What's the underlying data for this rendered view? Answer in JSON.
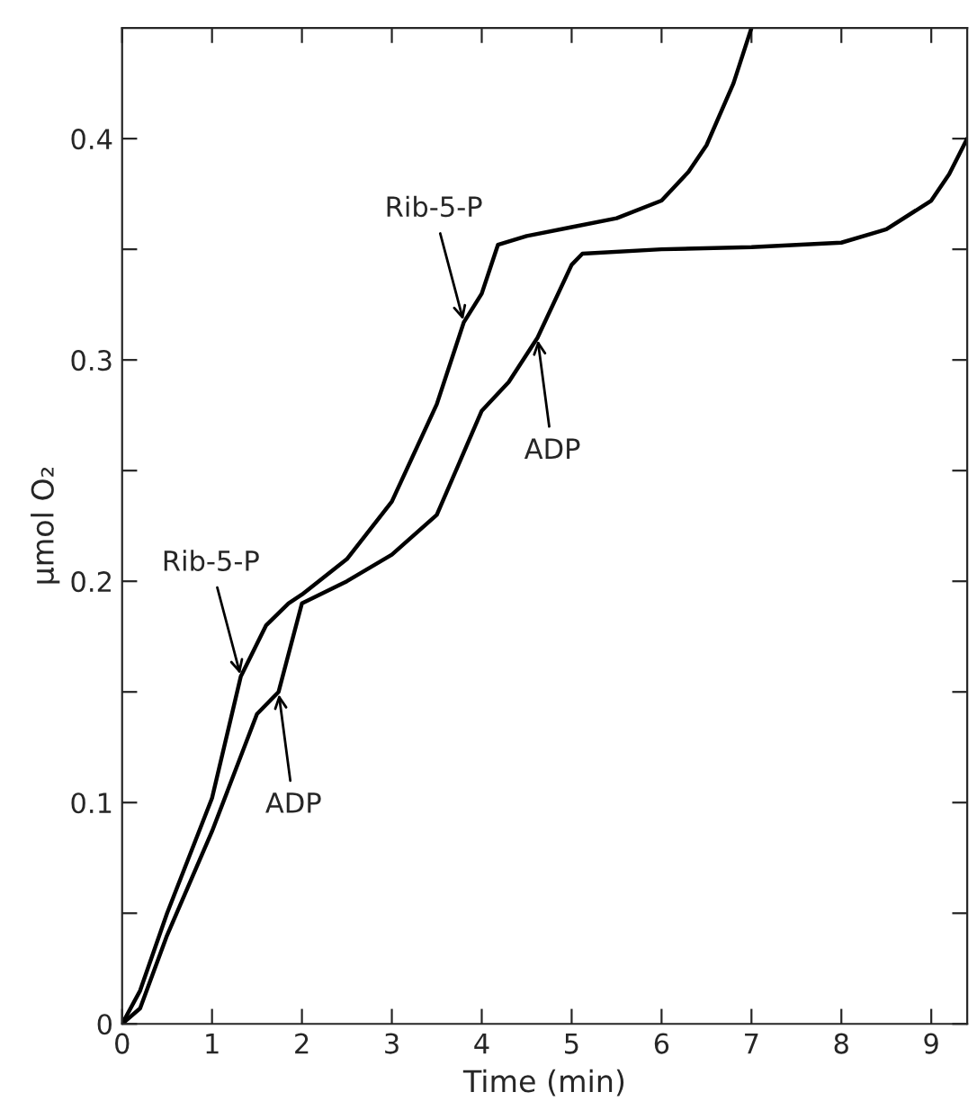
{
  "chart_data": {
    "type": "line",
    "xlabel": "Time (min)",
    "ylabel": "μmol O₂",
    "xlim": [
      0,
      9.4
    ],
    "xticks": [
      0,
      1,
      2,
      3,
      4,
      5,
      6,
      7,
      8,
      9
    ],
    "ylim": [
      0,
      0.45
    ],
    "yticks": [
      0,
      {
        "value": 0.05,
        "label": null
      },
      0.1,
      {
        "value": 0.15,
        "label": null
      },
      0.2,
      {
        "value": 0.25,
        "label": null
      },
      0.3,
      {
        "value": 0.35,
        "label": null
      },
      0.4
    ],
    "grid": false,
    "marker": "none",
    "line_style": "solid",
    "series": [
      {
        "color": "#000000",
        "x": [
          0,
          0.2,
          0.5,
          1,
          1.32,
          1.6,
          1.85,
          2,
          2.5,
          3,
          3.5,
          3.8,
          4,
          4.18,
          4.5,
          5,
          5.5,
          6,
          6.3,
          6.5,
          6.8,
          7.0
        ],
        "values": [
          0,
          0.015,
          0.05,
          0.102,
          0.157,
          0.18,
          0.19,
          0.194,
          0.21,
          0.236,
          0.28,
          0.317,
          0.33,
          0.352,
          0.356,
          0.36,
          0.364,
          0.372,
          0.385,
          0.397,
          0.425,
          0.45
        ]
      },
      {
        "color": "#000000",
        "x": [
          0,
          0.2,
          0.5,
          1,
          1.5,
          1.74,
          2,
          2.5,
          3,
          3.5,
          4,
          4.3,
          4.62,
          5,
          5.12,
          6,
          7,
          8,
          8.5,
          9,
          9.2,
          9.4
        ],
        "values": [
          0,
          0.007,
          0.04,
          0.087,
          0.14,
          0.15,
          0.19,
          0.2,
          0.212,
          0.23,
          0.277,
          0.29,
          0.31,
          0.343,
          0.348,
          0.35,
          0.351,
          0.353,
          0.359,
          0.372,
          0.384,
          0.4
        ]
      }
    ],
    "annotations": [
      {
        "text": "Rib-5-P",
        "x": 1.32,
        "y": 0.157
      },
      {
        "text": "ADP",
        "x": 1.74,
        "y": 0.15
      },
      {
        "text": "Rib-5-P",
        "x": 3.8,
        "y": 0.317
      },
      {
        "text": "ADP",
        "x": 4.62,
        "y": 0.31
      }
    ]
  }
}
